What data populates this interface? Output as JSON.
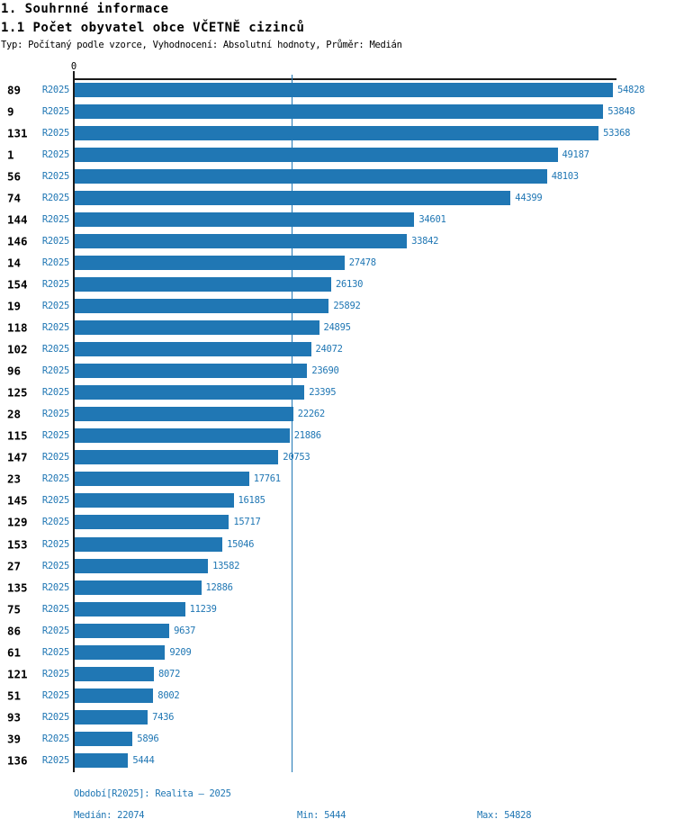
{
  "header": {
    "title": "1. Souhrnné informace",
    "subtitle": "1.1 Počet obyvatel obce VČETNĚ cizinců",
    "meta": "Typ: Počítaný podle vzorce, Vyhodnocení: Absolutní hodnoty, Průměr: Medián"
  },
  "chart_data": {
    "type": "bar",
    "orientation": "horizontal",
    "title": "1.1 Počet obyvatel obce VČETNĚ cizinců",
    "axis_zero_label": "0",
    "xlim": [
      0,
      54828
    ],
    "median_value": 22074,
    "min_value": 5444,
    "max_value": 54828,
    "bar_color": "#2077b4",
    "label_color": "#2077b4",
    "series_period": "R2025",
    "grid": "median-line-only",
    "rows": [
      {
        "id": "89",
        "period": "R2025",
        "value": 54828
      },
      {
        "id": "9",
        "period": "R2025",
        "value": 53848
      },
      {
        "id": "131",
        "period": "R2025",
        "value": 53368
      },
      {
        "id": "1",
        "period": "R2025",
        "value": 49187
      },
      {
        "id": "56",
        "period": "R2025",
        "value": 48103
      },
      {
        "id": "74",
        "period": "R2025",
        "value": 44399
      },
      {
        "id": "144",
        "period": "R2025",
        "value": 34601
      },
      {
        "id": "146",
        "period": "R2025",
        "value": 33842
      },
      {
        "id": "14",
        "period": "R2025",
        "value": 27478
      },
      {
        "id": "154",
        "period": "R2025",
        "value": 26130
      },
      {
        "id": "19",
        "period": "R2025",
        "value": 25892
      },
      {
        "id": "118",
        "period": "R2025",
        "value": 24895
      },
      {
        "id": "102",
        "period": "R2025",
        "value": 24072
      },
      {
        "id": "96",
        "period": "R2025",
        "value": 23690
      },
      {
        "id": "125",
        "period": "R2025",
        "value": 23395
      },
      {
        "id": "28",
        "period": "R2025",
        "value": 22262
      },
      {
        "id": "115",
        "period": "R2025",
        "value": 21886
      },
      {
        "id": "147",
        "period": "R2025",
        "value": 20753
      },
      {
        "id": "23",
        "period": "R2025",
        "value": 17761
      },
      {
        "id": "145",
        "period": "R2025",
        "value": 16185
      },
      {
        "id": "129",
        "period": "R2025",
        "value": 15717
      },
      {
        "id": "153",
        "period": "R2025",
        "value": 15046
      },
      {
        "id": "27",
        "period": "R2025",
        "value": 13582
      },
      {
        "id": "135",
        "period": "R2025",
        "value": 12886
      },
      {
        "id": "75",
        "period": "R2025",
        "value": 11239
      },
      {
        "id": "86",
        "period": "R2025",
        "value": 9637
      },
      {
        "id": "61",
        "period": "R2025",
        "value": 9209
      },
      {
        "id": "121",
        "period": "R2025",
        "value": 8072
      },
      {
        "id": "51",
        "period": "R2025",
        "value": 8002
      },
      {
        "id": "93",
        "period": "R2025",
        "value": 7436
      },
      {
        "id": "39",
        "period": "R2025",
        "value": 5896
      },
      {
        "id": "136",
        "period": "R2025",
        "value": 5444
      }
    ]
  },
  "footer": {
    "period_line": "Období[R2025]: Realita – 2025",
    "median_label": "Medián: 22074",
    "min_label": "Min: 5444",
    "max_label": "Max: 54828"
  }
}
